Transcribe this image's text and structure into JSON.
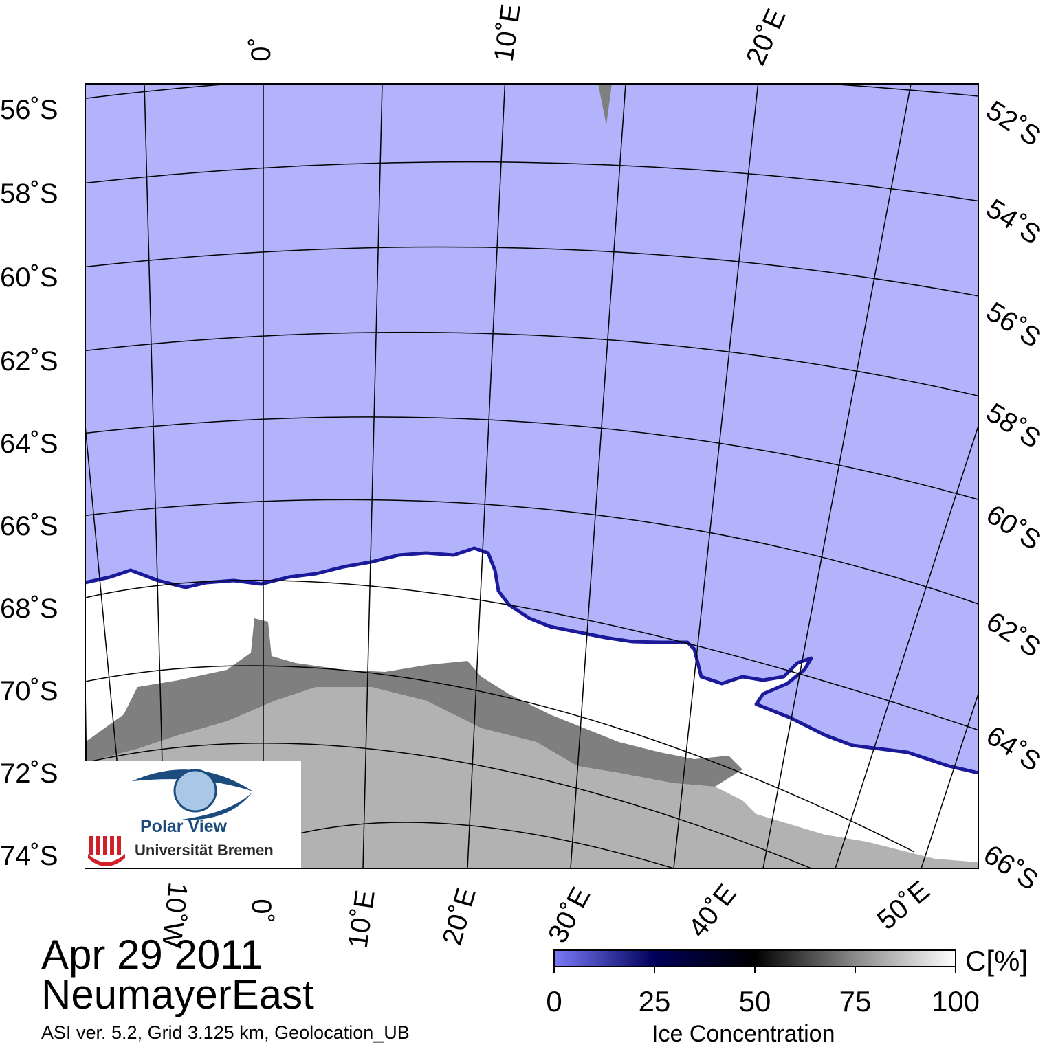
{
  "map": {
    "date": "Apr 29 2011",
    "region": "NeumayerEast",
    "info": "ASI ver. 5.2,  Grid 3.125 km, Geolocation_UB",
    "colors": {
      "open_water": "#b3b3fc",
      "ice": "#ffffff",
      "ice_shelf": "#7f7f7f",
      "land": "#b2b2b2",
      "grid": "#000000"
    },
    "lat_labels_left": [
      "56˚S",
      "58˚S",
      "60˚S",
      "62˚S",
      "64˚S",
      "66˚S",
      "68˚S",
      "70˚S",
      "72˚S",
      "74˚S"
    ],
    "lat_labels_right": [
      "52˚S",
      "54˚S",
      "56˚S",
      "58˚S",
      "60˚S",
      "62˚S",
      "64˚S",
      "66˚S"
    ],
    "lon_labels_top": [
      "0˚",
      "10˚E",
      "20˚E"
    ],
    "lon_labels_bottom": [
      "10˚W",
      "0˚",
      "10˚E",
      "20˚E",
      "30˚E",
      "40˚E",
      "50˚E"
    ]
  },
  "colorbar": {
    "unit": "C[%]",
    "label": "Ice Concentration",
    "ticks": [
      "0",
      "25",
      "50",
      "75",
      "100"
    ],
    "stops": [
      "#7a7afa",
      "#00005a",
      "#000000",
      "#8a8a8a",
      "#ffffff"
    ]
  },
  "logo": {
    "title": "Polar View",
    "university": "Universität Bremen",
    "colors": {
      "eye": "#1c4b7d",
      "globe": "#a9c8e8",
      "uni_mark": "#d0202a"
    }
  }
}
